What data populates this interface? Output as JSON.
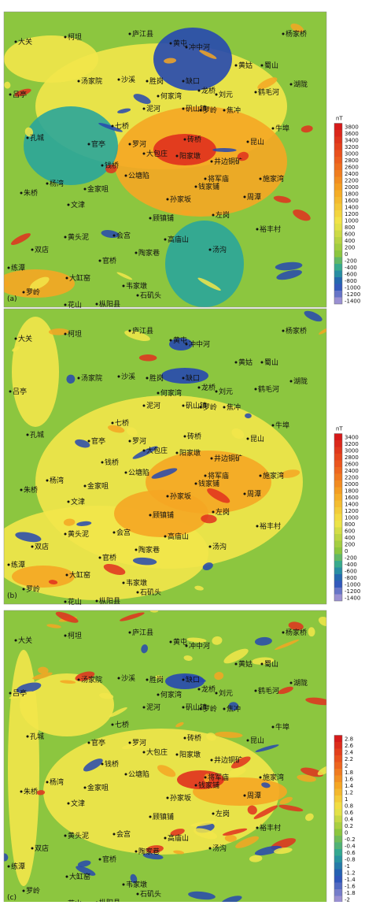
{
  "panels": [
    {
      "label": "(a)",
      "unit": "nT",
      "levels": [
        3800,
        3600,
        3400,
        3200,
        3000,
        2800,
        2600,
        2400,
        2200,
        2000,
        1800,
        1600,
        1400,
        1200,
        1000,
        800,
        600,
        400,
        200,
        0,
        -200,
        -400,
        -600,
        -800,
        -1000,
        -1200,
        -1400
      ]
    },
    {
      "label": "(b)",
      "unit": "nT",
      "levels": [
        3400,
        3200,
        3000,
        2800,
        2600,
        2400,
        2200,
        2000,
        1800,
        1600,
        1400,
        1200,
        1000,
        800,
        600,
        400,
        200,
        0,
        -200,
        -400,
        -600,
        -800,
        -1000,
        -1200,
        -1400
      ]
    },
    {
      "label": "(c)",
      "levels": [
        2.8,
        2.6,
        2.4,
        2.2,
        2,
        1.8,
        1.6,
        1.4,
        1.2,
        1,
        0.8,
        0.6,
        0.4,
        0.2,
        0,
        -0.2,
        -0.4,
        -0.6,
        -0.8,
        -1,
        -1.2,
        -1.4,
        -1.6,
        -1.8,
        -2
      ]
    }
  ],
  "places": [
    "大关",
    "柯坦",
    "庐江县",
    "黄屯",
    "冲中河",
    "杨家桥",
    "黄姑",
    "蜀山",
    "汤家院",
    "沙溪",
    "胜岗",
    "缺口",
    "龙桥",
    "鹤毛河",
    "湖陇",
    "吕亭",
    "何家湾",
    "刘元",
    "泥河",
    "矾山镇",
    "罗岭",
    "焦冲",
    "七桥",
    "孔城",
    "牛埠",
    "砖桥",
    "官亭",
    "罗河",
    "昆山",
    "大包庄",
    "阳家墩",
    "井边铜矿",
    "钱桥",
    "公塘陷",
    "将军庙",
    "施家湾",
    "杨湾",
    "朱桥",
    "金家咀",
    "钱家铺",
    "孙家坂",
    "周潭",
    "文津",
    "顾镇铺",
    "左岗",
    "裕丰村",
    "黄头泥",
    "会宫",
    "高庙山",
    "双店",
    "陶家巷",
    "汤沟",
    "官桥",
    "练潭",
    "大缸窑",
    "韦家墩",
    "石矶头",
    "罗岭",
    "花山",
    "枞阳县"
  ]
}
